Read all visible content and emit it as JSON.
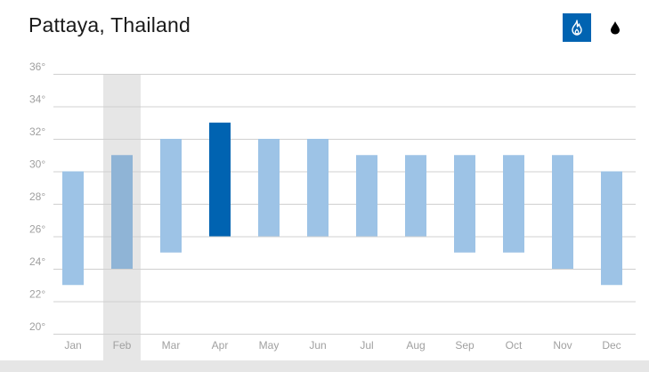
{
  "title": "Pattaya, Thailand",
  "toggles": {
    "temperature_icon": "flame-icon",
    "rain_icon": "raindrop-icon",
    "selected": "temperature"
  },
  "colors": {
    "bar": "#9dc3e6",
    "bar_hover": "#8fb4d6",
    "bar_selected": "#0063b1",
    "hover_column": "#e6e6e6",
    "grid": "#d0d0d0",
    "label": "#a0a0a0",
    "accent": "#0063b1"
  },
  "chart_data": {
    "type": "bar",
    "subtype": "floating-range",
    "categories": [
      "Jan",
      "Feb",
      "Mar",
      "Apr",
      "May",
      "Jun",
      "Jul",
      "Aug",
      "Sep",
      "Oct",
      "Nov",
      "Dec"
    ],
    "series": [
      {
        "low": [
          23,
          24,
          25,
          26,
          26,
          26,
          26,
          26,
          25,
          25,
          24,
          23
        ],
        "high": [
          30,
          31,
          32,
          33,
          32,
          32,
          31,
          31,
          31,
          31,
          31,
          30
        ]
      }
    ],
    "ylim": [
      20,
      36
    ],
    "yticks": [
      20,
      22,
      24,
      26,
      28,
      30,
      32,
      34,
      36
    ],
    "tick_suffix": "°",
    "grid": true,
    "highlighted_category": "Apr",
    "hovered_category": "Feb"
  }
}
